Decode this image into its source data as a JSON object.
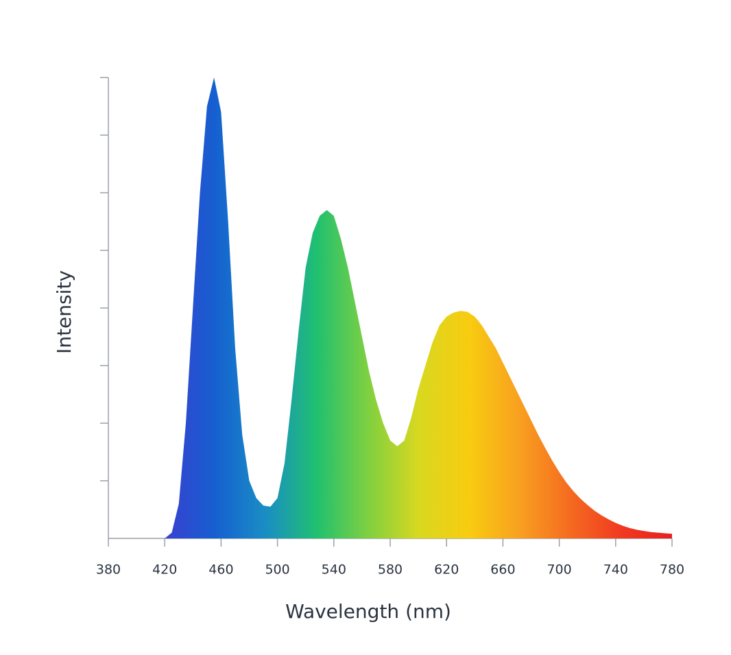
{
  "chart_data": {
    "type": "area",
    "xlabel": "Wavelength (nm)",
    "ylabel": "Intensity",
    "x": [
      420,
      425,
      430,
      435,
      440,
      445,
      450,
      455,
      460,
      465,
      470,
      475,
      480,
      485,
      490,
      495,
      500,
      505,
      510,
      515,
      520,
      525,
      530,
      535,
      540,
      545,
      550,
      555,
      560,
      565,
      570,
      575,
      580,
      585,
      590,
      595,
      600,
      605,
      610,
      615,
      620,
      625,
      630,
      635,
      640,
      645,
      650,
      655,
      660,
      665,
      670,
      675,
      680,
      685,
      690,
      695,
      700,
      705,
      710,
      715,
      720,
      725,
      730,
      735,
      740,
      745,
      750,
      755,
      760,
      765,
      770,
      775,
      780
    ],
    "values": [
      0,
      0.1,
      0.6,
      2.0,
      4.0,
      6.0,
      7.5,
      8.0,
      7.4,
      5.5,
      3.3,
      1.8,
      1.0,
      0.7,
      0.57,
      0.55,
      0.7,
      1.3,
      2.4,
      3.6,
      4.7,
      5.3,
      5.6,
      5.7,
      5.6,
      5.2,
      4.7,
      4.1,
      3.5,
      2.9,
      2.4,
      2.0,
      1.7,
      1.6,
      1.7,
      2.1,
      2.6,
      3.0,
      3.4,
      3.7,
      3.85,
      3.92,
      3.95,
      3.93,
      3.85,
      3.7,
      3.5,
      3.3,
      3.05,
      2.8,
      2.55,
      2.3,
      2.05,
      1.8,
      1.57,
      1.35,
      1.15,
      0.97,
      0.82,
      0.69,
      0.58,
      0.48,
      0.4,
      0.33,
      0.27,
      0.22,
      0.18,
      0.15,
      0.13,
      0.11,
      0.1,
      0.09,
      0.08
    ],
    "fill_colors": [
      "#3a3fd0",
      "#1560d0",
      "#1a8ec4",
      "#20c070",
      "#7ed040",
      "#d8d820",
      "#f8cc10",
      "#f8a020",
      "#f56a20",
      "#f03a20",
      "#e82020"
    ],
    "xlim": [
      380,
      780
    ],
    "xticks": [
      380,
      420,
      460,
      500,
      540,
      580,
      620,
      660,
      700,
      740,
      780
    ],
    "ylim": [
      0,
      8
    ],
    "yticks": [
      1,
      2,
      3,
      4,
      5,
      6,
      7,
      8
    ],
    "ytick_labels": false
  }
}
